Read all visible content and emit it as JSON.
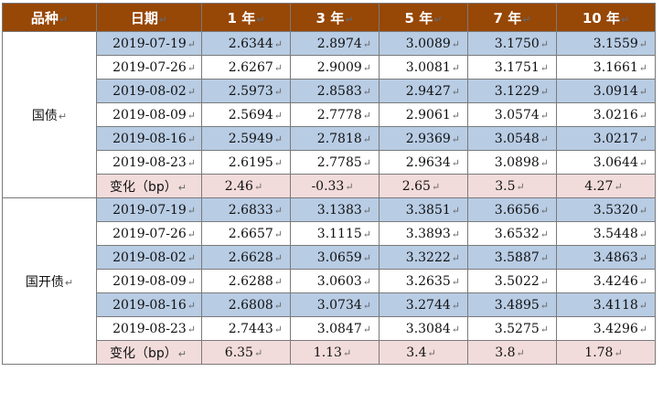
{
  "header": {
    "variety": "品种",
    "date": "日期",
    "y1": "1 年",
    "y3": "3 年",
    "y5": "5 年",
    "y7": "7 年",
    "y10": "10 年"
  },
  "para_mark": "↵",
  "groups": [
    {
      "name": "国债",
      "rows": [
        {
          "date": "2019-07-19",
          "y1": "2.6344",
          "y3": "2.8974",
          "y5": "3.0089",
          "y7": "3.1750",
          "y10": "3.1559"
        },
        {
          "date": "2019-07-26",
          "y1": "2.6267",
          "y3": "2.9009",
          "y5": "3.0081",
          "y7": "3.1751",
          "y10": "3.1661"
        },
        {
          "date": "2019-08-02",
          "y1": "2.5973",
          "y3": "2.8583",
          "y5": "2.9427",
          "y7": "3.1229",
          "y10": "3.0914"
        },
        {
          "date": "2019-08-09",
          "y1": "2.5694",
          "y3": "2.7778",
          "y5": "2.9061",
          "y7": "3.0574",
          "y10": "3.0216"
        },
        {
          "date": "2019-08-16",
          "y1": "2.5949",
          "y3": "2.7818",
          "y5": "2.9369",
          "y7": "3.0548",
          "y10": "3.0217"
        },
        {
          "date": "2019-08-23",
          "y1": "2.6195",
          "y3": "2.7785",
          "y5": "2.9634",
          "y7": "3.0898",
          "y10": "3.0644"
        }
      ],
      "change": {
        "label": "变化（bp）",
        "y1": "2.46",
        "y3": "-0.33",
        "y5": "2.65",
        "y7": "3.5",
        "y10": "4.27"
      }
    },
    {
      "name": "国开债",
      "rows": [
        {
          "date": "2019-07-19",
          "y1": "2.6833",
          "y3": "3.1383",
          "y5": "3.3851",
          "y7": "3.6656",
          "y10": "3.5320"
        },
        {
          "date": "2019-07-26",
          "y1": "2.6657",
          "y3": "3.1115",
          "y5": "3.3893",
          "y7": "3.6532",
          "y10": "3.5448"
        },
        {
          "date": "2019-08-02",
          "y1": "2.6628",
          "y3": "3.0659",
          "y5": "3.3222",
          "y7": "3.5887",
          "y10": "3.4863"
        },
        {
          "date": "2019-08-09",
          "y1": "2.6288",
          "y3": "3.0603",
          "y5": "3.2635",
          "y7": "3.5022",
          "y10": "3.4246"
        },
        {
          "date": "2019-08-16",
          "y1": "2.6808",
          "y3": "3.0734",
          "y5": "3.2744",
          "y7": "3.4895",
          "y10": "3.4118"
        },
        {
          "date": "2019-08-23",
          "y1": "2.7443",
          "y3": "3.0847",
          "y5": "3.3084",
          "y7": "3.5275",
          "y10": "3.4296"
        }
      ],
      "change": {
        "label": "变化（bp）",
        "y1": "6.35",
        "y3": "1.13",
        "y5": "3.4",
        "y7": "3.8",
        "y10": "1.78"
      }
    }
  ]
}
